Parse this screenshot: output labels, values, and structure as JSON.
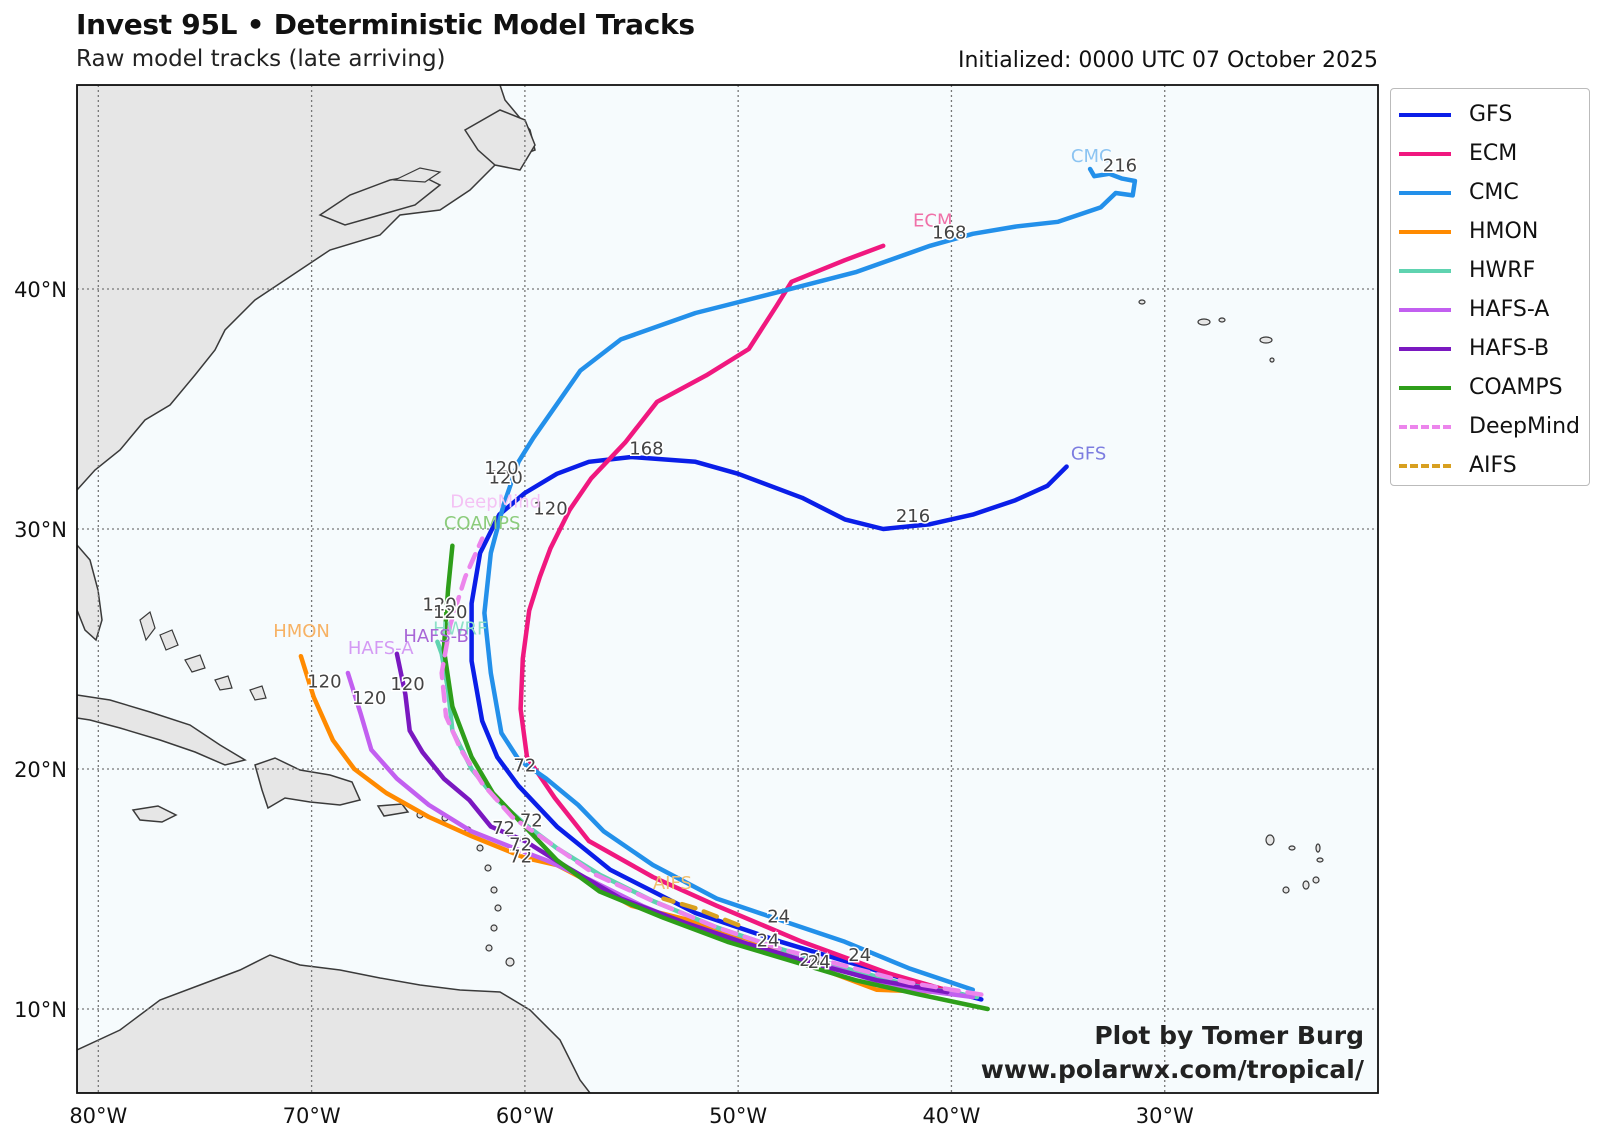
{
  "header": {
    "title": "Invest 95L • Deterministic Model Tracks",
    "subtitle": "Raw model tracks (late arriving)",
    "initialized": "Initialized: 0000 UTC 07 October 2025"
  },
  "credit": {
    "line1": "Plot by Tomer Burg",
    "line2": "www.polarwx.com/tropical/"
  },
  "axes": {
    "lon_ticks": [
      {
        "lon": -80,
        "label": "80°W"
      },
      {
        "lon": -70,
        "label": "70°W"
      },
      {
        "lon": -60,
        "label": "60°W"
      },
      {
        "lon": -50,
        "label": "50°W"
      },
      {
        "lon": -40,
        "label": "40°W"
      },
      {
        "lon": -30,
        "label": "30°W"
      }
    ],
    "lat_ticks": [
      {
        "lat": 10,
        "label": "10°N"
      },
      {
        "lat": 20,
        "label": "20°N"
      },
      {
        "lat": 30,
        "label": "30°N"
      },
      {
        "lat": 40,
        "label": "40°N"
      }
    ],
    "lon_range": [
      -81,
      -20
    ],
    "lat_range": [
      6.5,
      48.5
    ]
  },
  "map_style": {
    "ocean": "#f6fbfd",
    "land": "#e6e6e6",
    "coast": "#3a3a3a",
    "grid": "#777777"
  },
  "chart_data": {
    "type": "map-tracks",
    "tracks": [
      {
        "name": "GFS",
        "color": "#0a1ee8",
        "dashed": false,
        "points": [
          [
            -38.6,
            10.4
          ],
          [
            -42,
            11.2
          ],
          [
            -45,
            12.0
          ],
          [
            -48,
            12.8
          ],
          [
            -52,
            14.0
          ],
          [
            -56,
            15.8
          ],
          [
            -58.5,
            17.6
          ],
          [
            -60.3,
            19.3
          ],
          [
            -61.3,
            20.5
          ],
          [
            -62,
            22.0
          ],
          [
            -62.5,
            24.5
          ],
          [
            -62.5,
            26.9
          ],
          [
            -62.1,
            29.0
          ],
          [
            -61.2,
            30.6
          ],
          [
            -60,
            31.5
          ],
          [
            -58.5,
            32.3
          ],
          [
            -57,
            32.8
          ],
          [
            -55,
            33.0
          ],
          [
            -52,
            32.8
          ],
          [
            -50,
            32.3
          ],
          [
            -47,
            31.3
          ],
          [
            -45,
            30.4
          ],
          [
            -43.2,
            30.0
          ],
          [
            -41,
            30.2
          ],
          [
            -39,
            30.6
          ],
          [
            -37,
            31.2
          ],
          [
            -35.5,
            31.8
          ],
          [
            -34.6,
            32.6
          ]
        ],
        "label": {
          "text": "GFS",
          "lon": -34.4,
          "lat": 32.9,
          "color": "#7c7ce0"
        },
        "hours": [
          {
            "text": "72",
            "lon": -60.0,
            "lat": 19.9
          },
          {
            "text": "120",
            "lon": -60.9,
            "lat": 31.9
          },
          {
            "text": "168",
            "lon": -54.3,
            "lat": 33.1
          },
          {
            "text": "216",
            "lon": -41.8,
            "lat": 30.3
          },
          {
            "text": "24",
            "lon": -48.6,
            "lat": 12.6
          }
        ]
      },
      {
        "name": "ECM",
        "color": "#f0187f",
        "dashed": false,
        "points": [
          [
            -39.5,
            10.6
          ],
          [
            -43,
            11.5
          ],
          [
            -47,
            12.8
          ],
          [
            -51,
            14.3
          ],
          [
            -54,
            15.5
          ],
          [
            -57,
            17.0
          ],
          [
            -58.6,
            18.8
          ],
          [
            -59.9,
            20.5
          ],
          [
            -60.2,
            22.5
          ],
          [
            -60.1,
            24.6
          ],
          [
            -59.8,
            26.6
          ],
          [
            -59.3,
            28.0
          ],
          [
            -58.8,
            29.2
          ],
          [
            -57.9,
            30.8
          ],
          [
            -56.9,
            32.1
          ],
          [
            -55.3,
            33.6
          ],
          [
            -53.8,
            35.3
          ],
          [
            -51.5,
            36.4
          ],
          [
            -49.5,
            37.5
          ],
          [
            -48.2,
            39.3
          ],
          [
            -47.5,
            40.3
          ],
          [
            -45,
            41.2
          ],
          [
            -43.2,
            41.8
          ]
        ],
        "label": {
          "text": "ECM",
          "lon": -41.8,
          "lat": 42.6,
          "color": "#f070a8"
        },
        "hours": [
          {
            "text": "120",
            "lon": -58.8,
            "lat": 30.6
          },
          {
            "text": "168",
            "lon": -40.1,
            "lat": 42.1
          }
        ]
      },
      {
        "name": "CMC",
        "color": "#2390ea",
        "dashed": false,
        "points": [
          [
            -39.0,
            10.8
          ],
          [
            -42,
            11.7
          ],
          [
            -45,
            12.8
          ],
          [
            -48,
            13.7
          ],
          [
            -51,
            14.6
          ],
          [
            -54,
            16.0
          ],
          [
            -56.3,
            17.4
          ],
          [
            -57.5,
            18.5
          ],
          [
            -59,
            19.6
          ],
          [
            -60.3,
            20.4
          ],
          [
            -61.1,
            21.5
          ],
          [
            -61.6,
            24.0
          ],
          [
            -61.9,
            26.5
          ],
          [
            -61.6,
            29.0
          ],
          [
            -61.0,
            31.0
          ],
          [
            -60.3,
            32.8
          ],
          [
            -59.6,
            33.8
          ],
          [
            -58.5,
            35.2
          ],
          [
            -57.4,
            36.6
          ],
          [
            -55.5,
            37.9
          ],
          [
            -52,
            39.0
          ],
          [
            -48,
            39.9
          ],
          [
            -44.5,
            40.7
          ],
          [
            -41,
            41.8
          ],
          [
            -39,
            42.3
          ],
          [
            -37,
            42.6
          ],
          [
            -35,
            42.8
          ],
          [
            -33,
            43.4
          ],
          [
            -32.3,
            44.0
          ],
          [
            -31.5,
            43.9
          ],
          [
            -31.4,
            44.5
          ],
          [
            -32,
            44.6
          ],
          [
            -32.6,
            44.8
          ],
          [
            -33.3,
            44.7
          ],
          [
            -33.5,
            45.0
          ]
        ],
        "label": {
          "text": "CMC",
          "lon": -34.4,
          "lat": 45.3,
          "color": "#8cc4f2"
        },
        "hours": [
          {
            "text": "120",
            "lon": -61.1,
            "lat": 32.3
          },
          {
            "text": "216",
            "lon": -32.1,
            "lat": 44.9
          },
          {
            "text": "24",
            "lon": -48.1,
            "lat": 13.6
          }
        ]
      },
      {
        "name": "HMON",
        "color": "#ff8a00",
        "dashed": false,
        "points": [
          [
            -40.0,
            10.7
          ],
          [
            -43.5,
            10.8
          ],
          [
            -46.5,
            11.8
          ],
          [
            -49.5,
            12.9
          ],
          [
            -52.3,
            13.7
          ],
          [
            -55,
            14.3
          ],
          [
            -57,
            15.3
          ],
          [
            -58.5,
            16.0
          ],
          [
            -60,
            16.3
          ],
          [
            -62.5,
            17.2
          ],
          [
            -64.5,
            18.0
          ],
          [
            -66.5,
            19.0
          ],
          [
            -68,
            20.0
          ],
          [
            -69,
            21.2
          ],
          [
            -69.9,
            23.0
          ],
          [
            -70.5,
            24.7
          ]
        ],
        "label": {
          "text": "HMON",
          "lon": -71.8,
          "lat": 25.5,
          "color": "#f7b264"
        },
        "hours": [
          {
            "text": "120",
            "lon": -69.4,
            "lat": 23.4
          }
        ]
      },
      {
        "name": "HWRF",
        "color": "#5fd3b0",
        "dashed": false,
        "points": [
          [
            -38.8,
            10.5
          ],
          [
            -42,
            11.0
          ],
          [
            -45,
            11.7
          ],
          [
            -48,
            12.5
          ],
          [
            -51,
            13.4
          ],
          [
            -54,
            14.5
          ],
          [
            -56.5,
            15.6
          ],
          [
            -58.5,
            16.7
          ],
          [
            -60,
            17.7
          ],
          [
            -61.4,
            18.8
          ],
          [
            -62.5,
            20.0
          ],
          [
            -63.4,
            21.6
          ],
          [
            -63.6,
            23.3
          ],
          [
            -63.9,
            24.8
          ],
          [
            -64.1,
            25.3
          ]
        ],
        "label": {
          "text": "HWRF",
          "lon": -64.3,
          "lat": 25.6,
          "color": "#8de0c8"
        },
        "hours": [
          {
            "text": "24",
            "lon": -46.6,
            "lat": 11.8
          }
        ]
      },
      {
        "name": "HAFS-A",
        "color": "#c25ff0",
        "dashed": false,
        "points": [
          [
            -39.0,
            10.5
          ],
          [
            -42.5,
            10.9
          ],
          [
            -45.5,
            11.7
          ],
          [
            -48.5,
            12.4
          ],
          [
            -51.5,
            13.2
          ],
          [
            -54.5,
            14.3
          ],
          [
            -57,
            15.4
          ],
          [
            -59,
            16.2
          ],
          [
            -60.5,
            16.7
          ],
          [
            -62.5,
            17.4
          ],
          [
            -64.5,
            18.5
          ],
          [
            -66,
            19.6
          ],
          [
            -67.2,
            20.8
          ],
          [
            -67.7,
            22.3
          ],
          [
            -68.3,
            24.0
          ]
        ],
        "label": {
          "text": "HAFS-A",
          "lon": -68.3,
          "lat": 24.8,
          "color": "#d49af4"
        },
        "hours": [
          {
            "text": "120",
            "lon": -67.3,
            "lat": 22.7
          },
          {
            "text": "72",
            "lon": -60.2,
            "lat": 16.1
          }
        ]
      },
      {
        "name": "HAFS-B",
        "color": "#7a18c0",
        "dashed": false,
        "points": [
          [
            -40.2,
            10.7
          ],
          [
            -43.5,
            11.2
          ],
          [
            -46.5,
            11.9
          ],
          [
            -49.5,
            12.7
          ],
          [
            -52.5,
            13.6
          ],
          [
            -55.5,
            14.6
          ],
          [
            -58,
            15.9
          ],
          [
            -60,
            17.0
          ],
          [
            -61.6,
            17.6
          ],
          [
            -62.6,
            18.7
          ],
          [
            -63.8,
            19.6
          ],
          [
            -64.8,
            20.7
          ],
          [
            -65.4,
            21.6
          ],
          [
            -65.6,
            23.1
          ],
          [
            -66.0,
            24.8
          ]
        ],
        "label": {
          "text": "HAFS-B",
          "lon": -65.7,
          "lat": 25.3,
          "color": "#a866d6"
        },
        "hours": [
          {
            "text": "120",
            "lon": -65.5,
            "lat": 23.3
          },
          {
            "text": "72",
            "lon": -61.0,
            "lat": 17.3
          }
        ]
      },
      {
        "name": "COAMPS",
        "color": "#2e9e1a",
        "dashed": false,
        "points": [
          [
            -38.3,
            10.0
          ],
          [
            -41.5,
            10.6
          ],
          [
            -44.5,
            11.2
          ],
          [
            -47.5,
            12.0
          ],
          [
            -50.5,
            12.8
          ],
          [
            -53.5,
            13.8
          ],
          [
            -56.5,
            14.9
          ],
          [
            -58.5,
            16.2
          ],
          [
            -60.0,
            17.6
          ],
          [
            -61.5,
            19.0
          ],
          [
            -62.5,
            20.5
          ],
          [
            -63.4,
            22.6
          ],
          [
            -63.8,
            25.0
          ],
          [
            -63.6,
            27.5
          ],
          [
            -63.4,
            29.3
          ]
        ],
        "label": {
          "text": "COAMPS",
          "lon": -63.8,
          "lat": 30.0,
          "color": "#8ccc7c"
        },
        "hours": [
          {
            "text": "120",
            "lon": -64.0,
            "lat": 26.6
          },
          {
            "text": "72",
            "lon": -59.7,
            "lat": 17.6
          },
          {
            "text": "24",
            "lon": -44.3,
            "lat": 12.0
          }
        ]
      },
      {
        "name": "DeepMind",
        "color": "#ec85ec",
        "dashed": true,
        "points": [
          [
            -38.6,
            10.6
          ],
          [
            -42,
            11.1
          ],
          [
            -45,
            11.8
          ],
          [
            -48,
            12.5
          ],
          [
            -51,
            13.4
          ],
          [
            -54,
            14.5
          ],
          [
            -56.7,
            15.6
          ],
          [
            -58.8,
            16.9
          ],
          [
            -60.6,
            18.0
          ],
          [
            -62,
            19.4
          ],
          [
            -63,
            20.8
          ],
          [
            -63.7,
            22.2
          ],
          [
            -63.9,
            24.0
          ],
          [
            -63.5,
            26.0
          ],
          [
            -62.8,
            28.0
          ],
          [
            -62.0,
            29.6
          ]
        ],
        "label": {
          "text": "DeepMind",
          "lon": -63.5,
          "lat": 30.9,
          "color": "#f4c2f4"
        },
        "hours": [
          {
            "text": "120",
            "lon": -63.5,
            "lat": 26.3
          },
          {
            "text": "72",
            "lon": -60.2,
            "lat": 16.6
          }
        ]
      },
      {
        "name": "AIFS",
        "color": "#d8a020",
        "dashed": true,
        "points": [
          [
            -50,
            13.5
          ],
          [
            -52,
            14.2
          ],
          [
            -53.5,
            14.6
          ]
        ],
        "label": {
          "text": "AIFS",
          "lon": -54.0,
          "lat": 15.0,
          "color": "#f0c070"
        },
        "hours": [
          {
            "text": "24",
            "lon": -46.2,
            "lat": 11.7
          }
        ]
      }
    ]
  },
  "legend": {
    "items": [
      {
        "label": "GFS",
        "color": "#0a1ee8",
        "dashed": false
      },
      {
        "label": "ECM",
        "color": "#f0187f",
        "dashed": false
      },
      {
        "label": "CMC",
        "color": "#2390ea",
        "dashed": false
      },
      {
        "label": "HMON",
        "color": "#ff8a00",
        "dashed": false
      },
      {
        "label": "HWRF",
        "color": "#5fd3b0",
        "dashed": false
      },
      {
        "label": "HAFS-A",
        "color": "#c25ff0",
        "dashed": false
      },
      {
        "label": "HAFS-B",
        "color": "#7a18c0",
        "dashed": false
      },
      {
        "label": "COAMPS",
        "color": "#2e9e1a",
        "dashed": false
      },
      {
        "label": "DeepMind",
        "color": "#ec85ec",
        "dashed": true
      },
      {
        "label": "AIFS",
        "color": "#d8a020",
        "dashed": true
      }
    ]
  }
}
